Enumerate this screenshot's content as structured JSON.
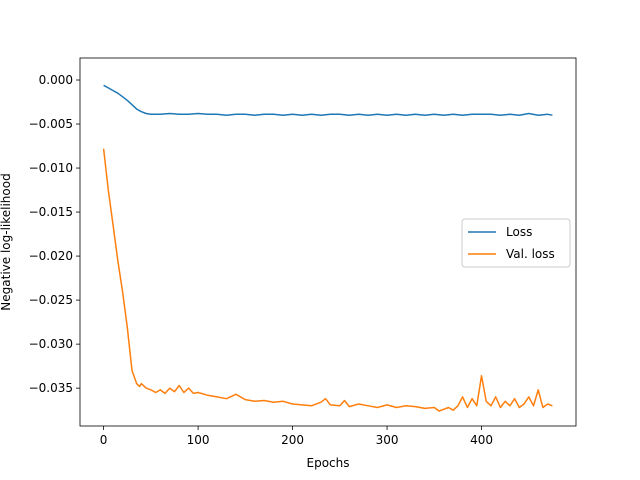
{
  "chart_data": {
    "type": "line",
    "title": "",
    "xlabel": "Epochs",
    "ylabel": "Negative log-likelihood",
    "xlim": [
      -25,
      500
    ],
    "ylim": [
      -0.0393,
      0.0025
    ],
    "xticks": [
      0,
      100,
      200,
      300,
      400
    ],
    "xtick_labels": [
      "0",
      "100",
      "200",
      "300",
      "400"
    ],
    "yticks": [
      0.0,
      -0.005,
      -0.01,
      -0.015,
      -0.02,
      -0.025,
      -0.03,
      -0.035
    ],
    "ytick_labels": [
      "0.000",
      "−0.005",
      "−0.010",
      "−0.015",
      "−0.020",
      "−0.025",
      "−0.030",
      "−0.035"
    ],
    "grid": false,
    "legend": {
      "position": "center-right",
      "entries": [
        "Loss",
        "Val. loss"
      ]
    },
    "series": [
      {
        "name": "Loss",
        "color": "#1f77b4",
        "x": [
          0,
          5,
          10,
          15,
          20,
          25,
          30,
          35,
          40,
          45,
          50,
          60,
          70,
          80,
          90,
          100,
          110,
          120,
          130,
          140,
          150,
          160,
          170,
          180,
          190,
          200,
          210,
          220,
          230,
          240,
          250,
          260,
          270,
          280,
          290,
          300,
          310,
          320,
          330,
          340,
          350,
          360,
          370,
          380,
          390,
          400,
          410,
          420,
          430,
          440,
          450,
          460,
          470,
          475
        ],
        "y": [
          -0.0006,
          -0.0009,
          -0.0012,
          -0.0015,
          -0.0019,
          -0.0023,
          -0.0028,
          -0.0033,
          -0.0036,
          -0.0038,
          -0.0039,
          -0.0039,
          -0.0038,
          -0.0039,
          -0.0039,
          -0.0038,
          -0.0039,
          -0.0039,
          -0.004,
          -0.0039,
          -0.0039,
          -0.004,
          -0.0039,
          -0.0039,
          -0.004,
          -0.0039,
          -0.004,
          -0.0039,
          -0.004,
          -0.0039,
          -0.0039,
          -0.004,
          -0.0039,
          -0.004,
          -0.0039,
          -0.004,
          -0.0039,
          -0.004,
          -0.0039,
          -0.004,
          -0.0039,
          -0.004,
          -0.0039,
          -0.004,
          -0.0039,
          -0.0039,
          -0.0039,
          -0.004,
          -0.0039,
          -0.004,
          -0.0038,
          -0.004,
          -0.0039,
          -0.004
        ]
      },
      {
        "name": "Val. loss",
        "color": "#ff7f0e",
        "x": [
          0,
          5,
          10,
          15,
          20,
          25,
          30,
          35,
          38,
          40,
          45,
          50,
          55,
          60,
          65,
          70,
          75,
          80,
          85,
          90,
          95,
          100,
          110,
          120,
          130,
          140,
          150,
          160,
          170,
          180,
          190,
          200,
          210,
          220,
          230,
          235,
          240,
          250,
          255,
          260,
          270,
          280,
          290,
          300,
          310,
          320,
          330,
          340,
          350,
          355,
          360,
          365,
          370,
          375,
          380,
          385,
          390,
          395,
          400,
          405,
          410,
          415,
          420,
          425,
          430,
          435,
          440,
          445,
          450,
          455,
          460,
          465,
          470,
          475
        ],
        "y": [
          -0.0078,
          -0.0125,
          -0.0165,
          -0.0205,
          -0.024,
          -0.028,
          -0.033,
          -0.0345,
          -0.0348,
          -0.0345,
          -0.035,
          -0.0352,
          -0.0355,
          -0.0352,
          -0.0356,
          -0.035,
          -0.0354,
          -0.0347,
          -0.0355,
          -0.035,
          -0.0356,
          -0.0355,
          -0.0358,
          -0.036,
          -0.0362,
          -0.0357,
          -0.0363,
          -0.0365,
          -0.0364,
          -0.0366,
          -0.0365,
          -0.0368,
          -0.0369,
          -0.037,
          -0.0366,
          -0.0362,
          -0.0369,
          -0.037,
          -0.0364,
          -0.0371,
          -0.0368,
          -0.037,
          -0.0372,
          -0.0369,
          -0.0372,
          -0.037,
          -0.0371,
          -0.0373,
          -0.0372,
          -0.0376,
          -0.0374,
          -0.0372,
          -0.0375,
          -0.037,
          -0.036,
          -0.0372,
          -0.0362,
          -0.037,
          -0.0336,
          -0.0365,
          -0.037,
          -0.036,
          -0.0372,
          -0.0365,
          -0.037,
          -0.0362,
          -0.0372,
          -0.0368,
          -0.036,
          -0.037,
          -0.0352,
          -0.0372,
          -0.0368,
          -0.037
        ]
      }
    ]
  }
}
